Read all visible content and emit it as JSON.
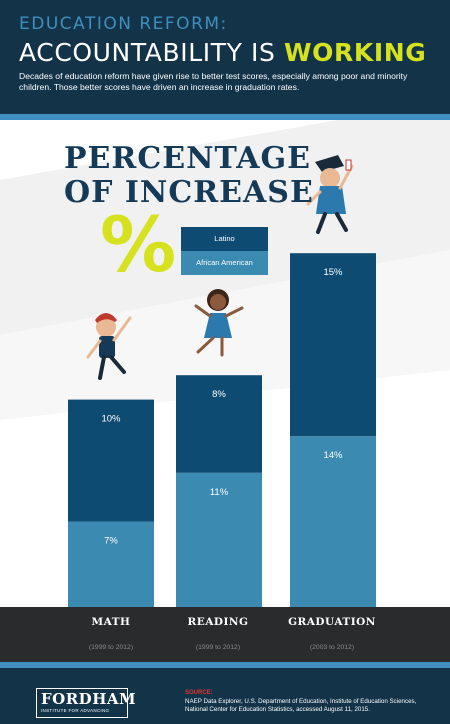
{
  "header": {
    "kicker": "EDUCATION REFORM:",
    "headline_main": "ACCOUNTABILITY IS ",
    "headline_highlight": "WORKING",
    "intro": "Decades of education reform have given rise to better test scores, especially among poor and minority children. Those better scores have driven an increase in graduation rates."
  },
  "colors": {
    "navy": "#133349",
    "accent_blue": "#3e8fbf",
    "latino": "#0e4b72",
    "african_american": "#3b8ab1",
    "highlight": "#d6e21d"
  },
  "chart_data": {
    "type": "bar",
    "stacked": true,
    "title": "PERCENTAGE OF INCREASE",
    "title_line1": "PERCENTAGE",
    "title_line2": "OF INCREASE",
    "percent_symbol": "%",
    "categories": [
      "MATH",
      "READING",
      "GRADUATION"
    ],
    "category_periods": [
      "(1999 to 2012)",
      "(1999 to 2012)",
      "(2003 to 2012)"
    ],
    "series": [
      {
        "name": "African American",
        "values": [
          7,
          11,
          14
        ],
        "labels": [
          "7%",
          "11%",
          "14%"
        ],
        "color": "#3b8ab1"
      },
      {
        "name": "Latino",
        "values": [
          10,
          8,
          15
        ],
        "labels": [
          "10%",
          "8%",
          "15%"
        ],
        "color": "#0e4b72"
      }
    ],
    "legend": [
      "Latino",
      "African American"
    ],
    "legend_position": "top-center",
    "grid": false
  },
  "footer": {
    "logo_name": "FORDHAM",
    "logo_tag": "INSTITUTE FOR ADVANCING",
    "source_label": "SOURCE:",
    "source_text": "NAEP Data Explorer, U.S. Department of Education, Institute of Education Sciences, National Center for Education Statistics, accessed August 11, 2015."
  }
}
